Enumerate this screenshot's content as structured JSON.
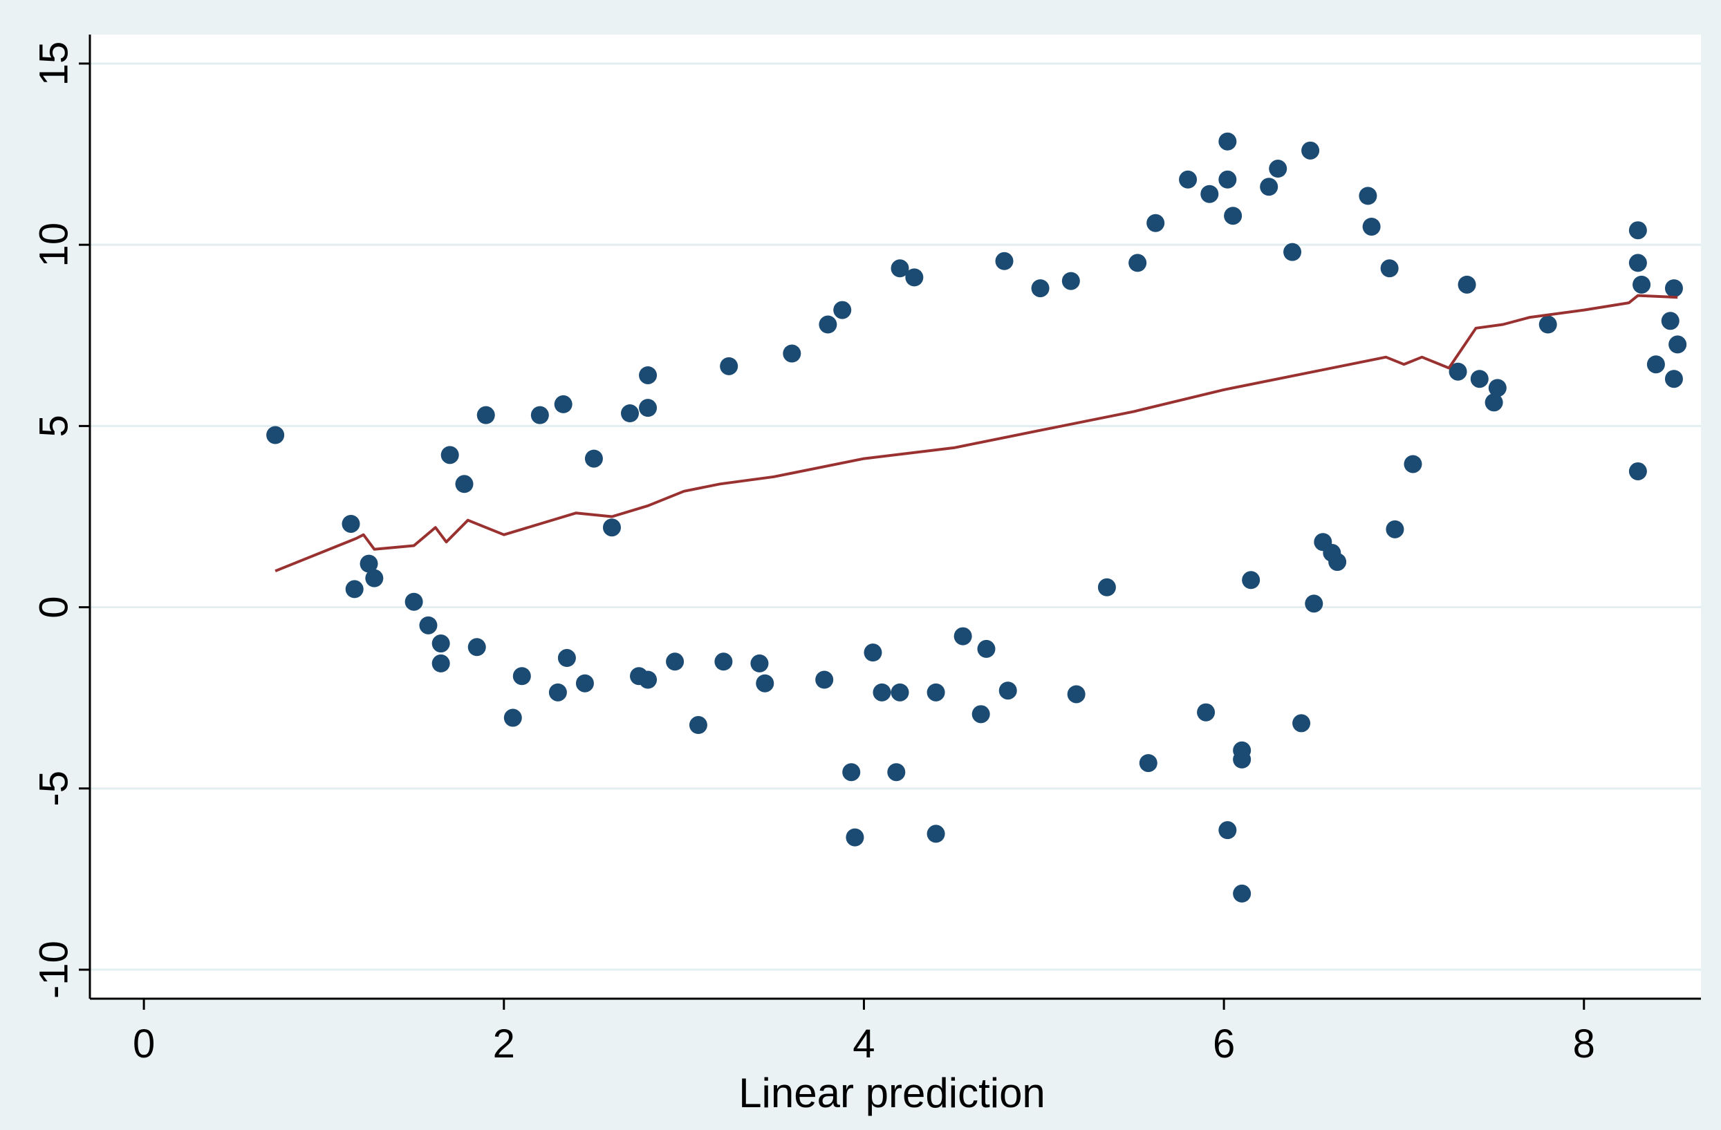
{
  "chart_data": {
    "type": "scatter",
    "title": "",
    "xlabel": "Linear prediction",
    "ylabel": "",
    "xlim": [
      -0.3,
      8.65
    ],
    "ylim": [
      -10.8,
      15.8
    ],
    "x_ticks": [
      0,
      2,
      4,
      6,
      8
    ],
    "y_ticks": [
      -10,
      -5,
      0,
      5,
      10,
      15
    ],
    "x_tick_labels": [
      "0",
      "2",
      "4",
      "6",
      "8"
    ],
    "y_tick_labels": [
      "-10",
      "-5",
      "0",
      "5",
      "10",
      "15"
    ],
    "grid": "horizontal",
    "legend": "none",
    "colors": {
      "points": "#1b4a72",
      "line": "#9a3131",
      "plot_bg": "#ffffff",
      "outer_bg": "#eaf2f3",
      "grid": "#e3eef0"
    },
    "series": [
      {
        "type": "scatter",
        "points": [
          [
            0.73,
            4.75
          ],
          [
            1.15,
            2.3
          ],
          [
            1.17,
            0.5
          ],
          [
            1.25,
            1.2
          ],
          [
            1.28,
            0.8
          ],
          [
            1.5,
            0.15
          ],
          [
            1.58,
            -0.5
          ],
          [
            1.65,
            -1.0
          ],
          [
            1.65,
            -1.55
          ],
          [
            1.7,
            4.2
          ],
          [
            1.78,
            3.4
          ],
          [
            1.9,
            5.3
          ],
          [
            1.85,
            -1.1
          ],
          [
            2.05,
            -3.05
          ],
          [
            2.1,
            -1.9
          ],
          [
            2.2,
            5.3
          ],
          [
            2.3,
            -2.35
          ],
          [
            2.33,
            5.6
          ],
          [
            2.35,
            -1.4
          ],
          [
            2.45,
            -2.1
          ],
          [
            2.5,
            4.1
          ],
          [
            2.6,
            2.2
          ],
          [
            2.7,
            5.35
          ],
          [
            2.75,
            -1.9
          ],
          [
            2.8,
            5.5
          ],
          [
            2.8,
            -2.0
          ],
          [
            2.8,
            6.4
          ],
          [
            2.95,
            -1.5
          ],
          [
            3.08,
            -3.25
          ],
          [
            3.25,
            6.65
          ],
          [
            3.22,
            -1.5
          ],
          [
            3.42,
            -1.55
          ],
          [
            3.45,
            -2.1
          ],
          [
            3.6,
            7.0
          ],
          [
            3.8,
            7.8
          ],
          [
            3.88,
            8.2
          ],
          [
            3.78,
            -2.0
          ],
          [
            3.93,
            -4.55
          ],
          [
            3.95,
            -6.35
          ],
          [
            4.05,
            -1.25
          ],
          [
            4.1,
            -2.35
          ],
          [
            4.18,
            -4.55
          ],
          [
            4.2,
            -2.35
          ],
          [
            4.2,
            9.35
          ],
          [
            4.28,
            9.1
          ],
          [
            4.4,
            -6.25
          ],
          [
            4.4,
            -2.35
          ],
          [
            4.55,
            -0.8
          ],
          [
            4.65,
            -2.95
          ],
          [
            4.68,
            -1.15
          ],
          [
            4.78,
            9.55
          ],
          [
            4.8,
            -2.3
          ],
          [
            4.98,
            8.8
          ],
          [
            5.15,
            9.0
          ],
          [
            5.18,
            -2.4
          ],
          [
            5.35,
            0.55
          ],
          [
            5.52,
            9.5
          ],
          [
            5.58,
            -4.3
          ],
          [
            5.62,
            10.6
          ],
          [
            5.8,
            11.8
          ],
          [
            5.9,
            -2.9
          ],
          [
            5.92,
            11.4
          ],
          [
            6.02,
            12.85
          ],
          [
            6.02,
            11.8
          ],
          [
            6.02,
            -6.15
          ],
          [
            6.05,
            10.8
          ],
          [
            6.1,
            -4.2
          ],
          [
            6.1,
            -3.95
          ],
          [
            6.1,
            -7.9
          ],
          [
            6.15,
            0.75
          ],
          [
            6.25,
            11.6
          ],
          [
            6.3,
            12.1
          ],
          [
            6.38,
            9.8
          ],
          [
            6.43,
            -3.2
          ],
          [
            6.48,
            12.6
          ],
          [
            6.5,
            0.1
          ],
          [
            6.55,
            1.8
          ],
          [
            6.6,
            1.5
          ],
          [
            6.63,
            1.25
          ],
          [
            6.8,
            11.35
          ],
          [
            6.82,
            10.5
          ],
          [
            6.92,
            9.35
          ],
          [
            6.95,
            2.15
          ],
          [
            7.05,
            3.95
          ],
          [
            7.3,
            6.5
          ],
          [
            7.35,
            8.9
          ],
          [
            7.42,
            6.3
          ],
          [
            7.5,
            5.65
          ],
          [
            7.52,
            6.05
          ],
          [
            7.8,
            7.8
          ],
          [
            8.3,
            10.4
          ],
          [
            8.3,
            9.5
          ],
          [
            8.3,
            3.75
          ],
          [
            8.32,
            8.9
          ],
          [
            8.4,
            6.7
          ],
          [
            8.5,
            8.8
          ],
          [
            8.5,
            6.3
          ],
          [
            8.52,
            7.25
          ],
          [
            8.48,
            7.9
          ]
        ]
      },
      {
        "type": "line",
        "points": [
          [
            0.73,
            1.0
          ],
          [
            1.18,
            1.9
          ],
          [
            1.22,
            2.0
          ],
          [
            1.28,
            1.6
          ],
          [
            1.5,
            1.7
          ],
          [
            1.62,
            2.2
          ],
          [
            1.68,
            1.8
          ],
          [
            1.8,
            2.4
          ],
          [
            2.0,
            2.0
          ],
          [
            2.2,
            2.3
          ],
          [
            2.4,
            2.6
          ],
          [
            2.6,
            2.5
          ],
          [
            2.8,
            2.8
          ],
          [
            3.0,
            3.2
          ],
          [
            3.2,
            3.4
          ],
          [
            3.5,
            3.6
          ],
          [
            4.0,
            4.1
          ],
          [
            4.5,
            4.4
          ],
          [
            5.0,
            4.9
          ],
          [
            5.5,
            5.4
          ],
          [
            6.0,
            6.0
          ],
          [
            6.5,
            6.5
          ],
          [
            6.9,
            6.9
          ],
          [
            7.0,
            6.7
          ],
          [
            7.1,
            6.9
          ],
          [
            7.25,
            6.6
          ],
          [
            7.4,
            7.7
          ],
          [
            7.55,
            7.8
          ],
          [
            7.7,
            8.0
          ],
          [
            8.0,
            8.2
          ],
          [
            8.25,
            8.4
          ],
          [
            8.3,
            8.6
          ],
          [
            8.52,
            8.55
          ]
        ]
      }
    ]
  }
}
